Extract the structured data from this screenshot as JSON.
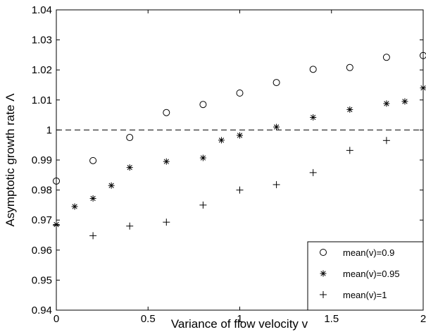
{
  "chart_data": {
    "type": "scatter",
    "xlabel": "Variance of flow velocity v",
    "ylabel": "Asymptotic growth rate Λ",
    "xlim": [
      0,
      2
    ],
    "ylim": [
      0.94,
      1.04
    ],
    "xticks": [
      "0",
      "0.5",
      "1",
      "1.5",
      "2"
    ],
    "xtick_values": [
      0,
      0.5,
      1,
      1.5,
      2
    ],
    "yticks": [
      "0.94",
      "0.95",
      "0.96",
      "0.97",
      "0.98",
      "0.99",
      "1",
      "1.01",
      "1.02",
      "1.03",
      "1.04"
    ],
    "ytick_values": [
      0.94,
      0.95,
      0.96,
      0.97,
      0.98,
      0.99,
      1.0,
      1.01,
      1.02,
      1.03,
      1.04
    ],
    "grid": false,
    "legend_position": "bottom-right",
    "reference_line": {
      "y": 1.0,
      "style": "dashed"
    },
    "series": [
      {
        "name": "mean(v)=0.9",
        "marker": "circle",
        "points": [
          [
            0,
            0.983
          ],
          [
            0.2,
            0.9898
          ],
          [
            0.4,
            0.9975
          ],
          [
            0.6,
            1.0058
          ],
          [
            0.8,
            1.0085
          ],
          [
            1.0,
            1.0123
          ],
          [
            1.2,
            1.0158
          ],
          [
            1.4,
            1.0202
          ],
          [
            1.6,
            1.0208
          ],
          [
            1.8,
            1.0242
          ],
          [
            2.0,
            1.0248
          ]
        ]
      },
      {
        "name": "mean(v)=0.95",
        "marker": "asterisk",
        "points": [
          [
            0,
            0.9685
          ],
          [
            0.1,
            0.9745
          ],
          [
            0.2,
            0.9772
          ],
          [
            0.3,
            0.9815
          ],
          [
            0.4,
            0.9875
          ],
          [
            0.6,
            0.9895
          ],
          [
            0.8,
            0.9907
          ],
          [
            0.9,
            0.9966
          ],
          [
            1.0,
            0.9982
          ],
          [
            1.2,
            1.001
          ],
          [
            1.4,
            1.0042
          ],
          [
            1.6,
            1.0068
          ],
          [
            1.8,
            1.0088
          ],
          [
            1.9,
            1.0095
          ],
          [
            2.0,
            1.014
          ]
        ]
      },
      {
        "name": "mean(v)=1",
        "marker": "plus",
        "points": [
          [
            0,
            0.9683
          ],
          [
            0.2,
            0.9648
          ],
          [
            0.4,
            0.968
          ],
          [
            0.6,
            0.9693
          ],
          [
            0.8,
            0.975
          ],
          [
            1.0,
            0.98
          ],
          [
            1.2,
            0.9818
          ],
          [
            1.4,
            0.9858
          ],
          [
            1.6,
            0.9932
          ],
          [
            1.8,
            0.9965
          ]
        ]
      }
    ]
  }
}
